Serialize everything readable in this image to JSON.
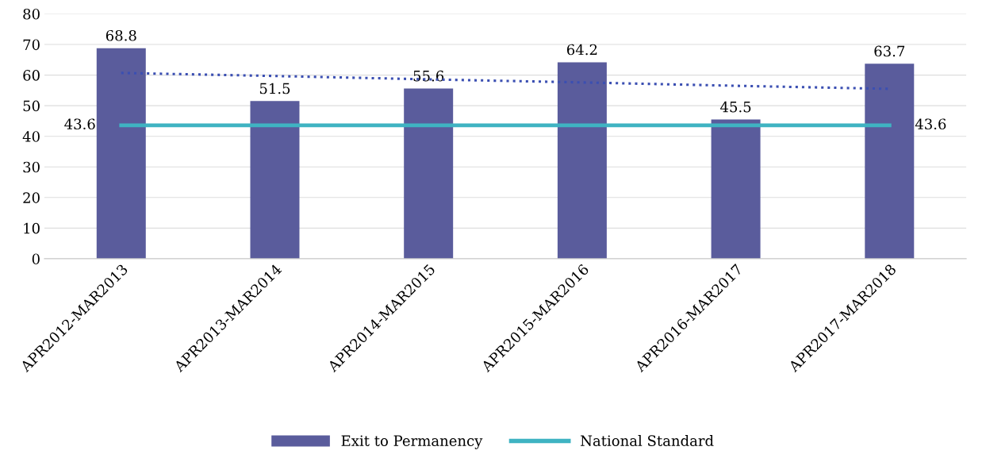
{
  "chart_data": {
    "type": "bar",
    "categories": [
      "APR2012-MAR2013",
      "APR2013-MAR2014",
      "APR2014-MAR2015",
      "APR2015-MAR2016",
      "APR2016-MAR2017",
      "APR2017-MAR2018"
    ],
    "series": [
      {
        "name": "Exit to Permanency",
        "color": "#5a5c9c",
        "values": [
          68.8,
          51.5,
          55.6,
          64.2,
          45.5,
          63.7
        ],
        "value_labels": [
          "68.8",
          "51.5",
          "55.6",
          "64.2",
          "45.5",
          "63.7"
        ]
      },
      {
        "name": "National Standard",
        "type": "line",
        "color": "#3fb3c2",
        "values": [
          43.6,
          43.6,
          43.6,
          43.6,
          43.6,
          43.6
        ],
        "value_labels": [
          "43.6",
          null,
          null,
          null,
          null,
          "43.6"
        ]
      },
      {
        "type": "line",
        "color": "#3b4fb2",
        "line_style": "dotted",
        "values": [
          60.7,
          59.7,
          58.6,
          57.6,
          56.5,
          55.5
        ]
      }
    ],
    "ylim": [
      0,
      80
    ],
    "yticks": [
      0,
      10,
      20,
      30,
      40,
      50,
      60,
      70,
      80
    ],
    "grid": "y",
    "legend": "bottom"
  }
}
